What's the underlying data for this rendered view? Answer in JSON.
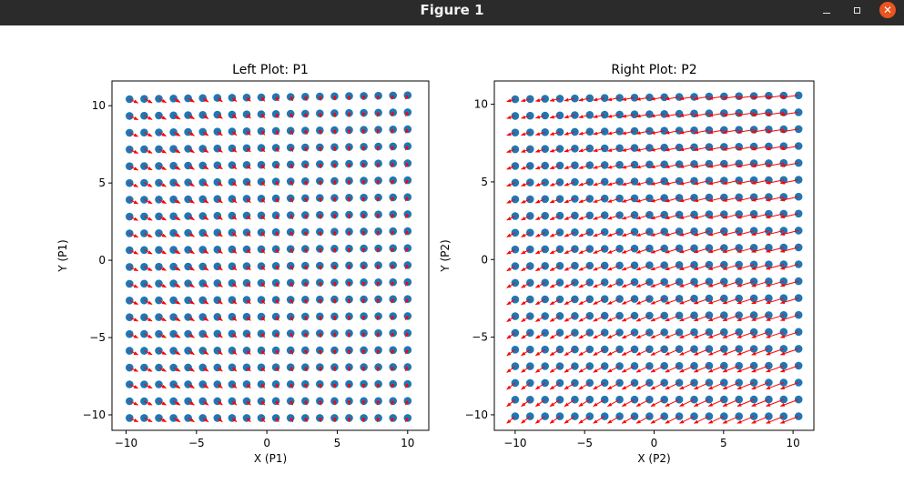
{
  "window": {
    "title": "Figure 1",
    "controls": {
      "minimize": "minimize-icon",
      "maximize": "maximize-icon",
      "close": "close-icon",
      "close_glyph": "✕",
      "close_color": "#e9541f"
    }
  },
  "chart_data": [
    {
      "type": "quiver-scatter",
      "title": "Left Plot: P1",
      "xlabel": "X (P1)",
      "ylabel": "Y (P1)",
      "xlim": [
        -11.0,
        11.5
      ],
      "ylim": [
        -11.0,
        11.6
      ],
      "xticks": [
        -10,
        -5,
        0,
        5,
        10
      ],
      "yticks": [
        -10,
        -5,
        0,
        5,
        10
      ],
      "tick_labels": {
        "x": [
          "−10",
          "−5",
          "0",
          "5",
          "10"
        ],
        "y": [
          "−10",
          "−5",
          "0",
          "5",
          "10"
        ]
      },
      "grid": false,
      "point_color": "#1f77b4",
      "arrow_color": "#ff0000",
      "grid_points": {
        "nx": 20,
        "ny": 20,
        "x_start": -10,
        "x_end": 10,
        "y_start": -10,
        "y_end": 10
      },
      "drift": {
        "left_edge_dx": 0.25,
        "right_edge_dx": 0.0,
        "top_dy": 0.55,
        "bottom_dy": -0.2
      },
      "arrow_field": {
        "dx_left": 0.6,
        "dx_right": -0.15,
        "dy_top": -0.25,
        "dy_bottom": -0.25
      }
    },
    {
      "type": "quiver-scatter",
      "title": "Right Plot: P2",
      "xlabel": "X (P2)",
      "ylabel": "Y (P2)",
      "xlim": [
        -11.5,
        11.5
      ],
      "ylim": [
        -11.0,
        11.5
      ],
      "xticks": [
        -10,
        -5,
        0,
        5,
        10
      ],
      "yticks": [
        -10,
        -5,
        0,
        5,
        10
      ],
      "tick_labels": {
        "x": [
          "−10",
          "−5",
          "0",
          "5",
          "10"
        ],
        "y": [
          "−10",
          "−5",
          "0",
          "5",
          "10"
        ]
      },
      "grid": false,
      "point_color": "#1f77b4",
      "arrow_color": "#ff0000",
      "grid_points": {
        "nx": 20,
        "ny": 20,
        "x_start": -10,
        "x_end": 10,
        "y_start": -10,
        "y_end": 10
      },
      "drift": {
        "left_edge_dx": 0.0,
        "right_edge_dx": 0.4,
        "top_dy": 0.45,
        "bottom_dy": -0.1
      },
      "arrow_field": {
        "dx_left": -0.6,
        "dx_right": -1.3,
        "dy_top": -0.15,
        "dy_bottom": -0.45
      }
    }
  ]
}
